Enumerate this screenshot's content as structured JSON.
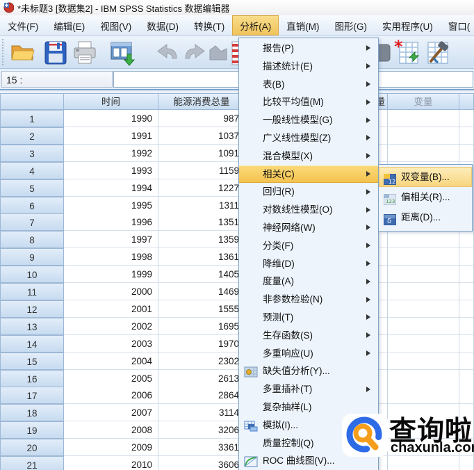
{
  "window": {
    "title": "*未标题3 [数据集2] - IBM SPSS Statistics 数据编辑器"
  },
  "menu_bar": {
    "items": [
      {
        "label": "文件(F)"
      },
      {
        "label": "编辑(E)"
      },
      {
        "label": "视图(V)"
      },
      {
        "label": "数据(D)"
      },
      {
        "label": "转换(T)"
      },
      {
        "label": "分析(A)",
        "active": true
      },
      {
        "label": "直销(M)"
      },
      {
        "label": "图形(G)"
      },
      {
        "label": "实用程序(U)"
      },
      {
        "label": "窗口("
      }
    ]
  },
  "toolbar": {
    "icons": [
      "open-data",
      "save",
      "print",
      "recall-dialogs",
      "undo",
      "redo",
      "insert-cases",
      "weight-cases"
    ]
  },
  "cell_reference": {
    "value": "15 :",
    "editor_value": ""
  },
  "data_grid": {
    "columns": [
      {
        "label": ""
      },
      {
        "label": "时间"
      },
      {
        "label": "能源消费总量"
      },
      {
        "label": "量"
      },
      {
        "label": "变量"
      },
      {
        "label": ""
      }
    ],
    "rows": [
      {
        "n": "1",
        "year": "1990",
        "value": "987"
      },
      {
        "n": "2",
        "year": "1991",
        "value": "1037"
      },
      {
        "n": "3",
        "year": "1992",
        "value": "1091"
      },
      {
        "n": "4",
        "year": "1993",
        "value": "1159"
      },
      {
        "n": "5",
        "year": "1994",
        "value": "1227"
      },
      {
        "n": "6",
        "year": "1995",
        "value": "1311"
      },
      {
        "n": "7",
        "year": "1996",
        "value": "1351"
      },
      {
        "n": "8",
        "year": "1997",
        "value": "1359"
      },
      {
        "n": "9",
        "year": "1998",
        "value": "1361"
      },
      {
        "n": "10",
        "year": "1999",
        "value": "1405"
      },
      {
        "n": "11",
        "year": "2000",
        "value": "1469"
      },
      {
        "n": "12",
        "year": "2001",
        "value": "1555"
      },
      {
        "n": "13",
        "year": "2002",
        "value": "1695"
      },
      {
        "n": "14",
        "year": "2003",
        "value": "1970"
      },
      {
        "n": "15",
        "year": "2004",
        "value": "2302"
      },
      {
        "n": "16",
        "year": "2005",
        "value": "2613"
      },
      {
        "n": "17",
        "year": "2006",
        "value": "2864"
      },
      {
        "n": "18",
        "year": "2007",
        "value": "3114"
      },
      {
        "n": "19",
        "year": "2008",
        "value": "3206"
      },
      {
        "n": "20",
        "year": "2009",
        "value": "3361"
      },
      {
        "n": "21",
        "year": "2010",
        "value": "3606"
      }
    ]
  },
  "analyze_menu": {
    "items": [
      {
        "label": "报告(P)",
        "submenu": true
      },
      {
        "label": "描述统计(E)",
        "submenu": true
      },
      {
        "label": "表(B)",
        "submenu": true
      },
      {
        "label": "比较平均值(M)",
        "submenu": true
      },
      {
        "label": "一般线性模型(G)",
        "submenu": true
      },
      {
        "label": "广义线性模型(Z)",
        "submenu": true
      },
      {
        "label": "混合模型(X)",
        "submenu": true
      },
      {
        "label": "相关(C)",
        "submenu": true,
        "highlighted": true
      },
      {
        "label": "回归(R)",
        "submenu": true
      },
      {
        "label": "对数线性模型(O)",
        "submenu": true
      },
      {
        "label": "神经网络(W)",
        "submenu": true
      },
      {
        "label": "分类(F)",
        "submenu": true
      },
      {
        "label": "降维(D)",
        "submenu": true
      },
      {
        "label": "度量(A)",
        "submenu": true
      },
      {
        "label": "非参数检验(N)",
        "submenu": true
      },
      {
        "label": "预测(T)",
        "submenu": true
      },
      {
        "label": "生存函数(S)",
        "submenu": true
      },
      {
        "label": "多重响应(U)",
        "submenu": true
      },
      {
        "label": "缺失值分析(Y)...",
        "icon": "missing-values"
      },
      {
        "label": "多重插补(T)",
        "submenu": true
      },
      {
        "label": "复杂抽样(L)"
      },
      {
        "label": "模拟(I)...",
        "icon": "simulation"
      },
      {
        "label": "质量控制(Q)",
        "submenu": true
      },
      {
        "label": "ROC 曲线图(V)...",
        "icon": "roc-curve"
      }
    ]
  },
  "correlate_submenu": {
    "items": [
      {
        "label": "双变量(B)...",
        "icon": "bivariate",
        "highlighted": true
      },
      {
        "label": "偏相关(R)...",
        "icon": "partial-correlation"
      },
      {
        "label": "距离(D)...",
        "icon": "distance"
      }
    ]
  },
  "watermark": {
    "name": "查询啦",
    "domain": "chaxunla.com"
  },
  "colors": {
    "menu_highlight": "#f4c24d",
    "header_blue": "#c8dcf1",
    "watermark_blue": "#2e6be6",
    "watermark_orange": "#f59e1b"
  }
}
